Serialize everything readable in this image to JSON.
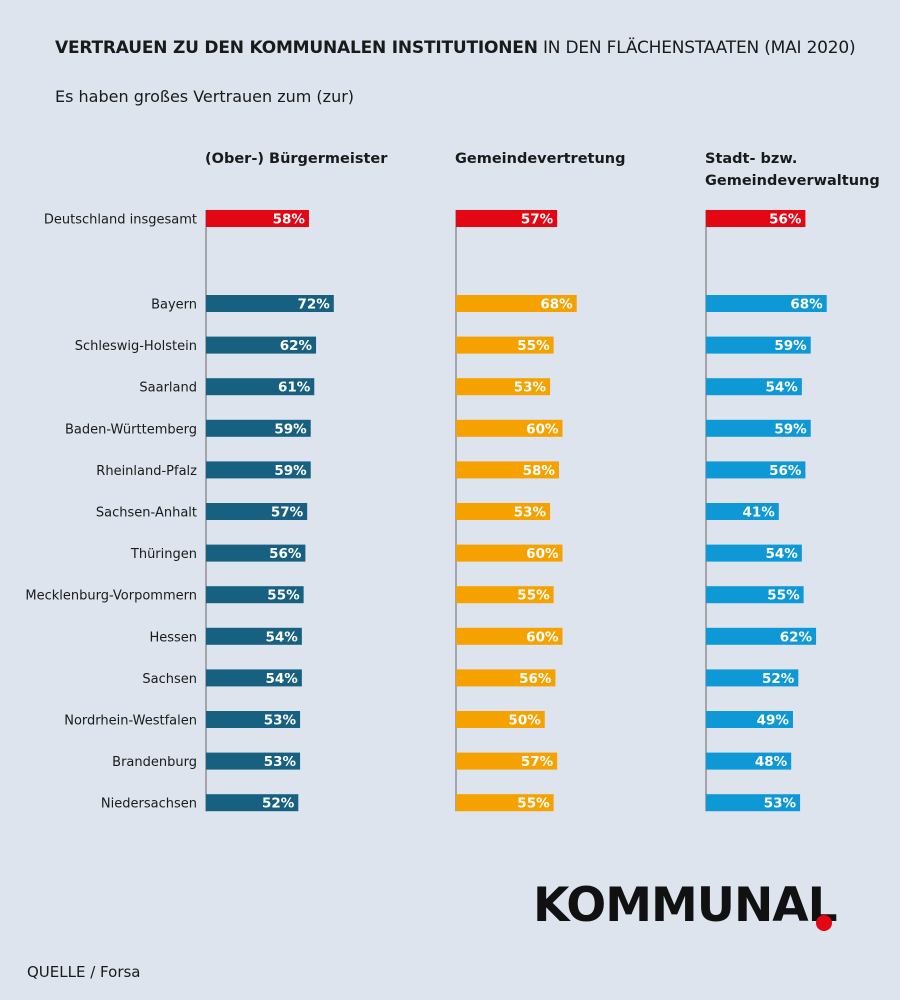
{
  "header": {
    "title_bold": "VERTRAUEN ZU DEN KOMMUNALEN INSTITUTIONEN",
    "title_rest": " IN DEN FLÄCHENSTAATEN (MAI 2020)",
    "subtitle": "Es haben großes Vertrauen zum (zur)"
  },
  "footer": {
    "source": "QUELLE / Forsa",
    "logo_text": "KOMMUNAL",
    "logo_dot_color": "#e30613"
  },
  "chart_data": {
    "type": "bar",
    "orientation": "horizontal",
    "unit": "%",
    "total": {
      "label": "Deutschland insgesamt",
      "values": [
        58,
        57,
        56
      ],
      "color": "#e30613"
    },
    "categories": [
      "Bayern",
      "Schleswig-Holstein",
      "Saarland",
      "Baden-Württemberg",
      "Rheinland-Pfalz",
      "Sachsen-Anhalt",
      "Thüringen",
      "Mecklenburg-Vorpommern",
      "Hessen",
      "Sachsen",
      "Nordrhein-Westfalen",
      "Brandenburg",
      "Niedersachsen"
    ],
    "series": [
      {
        "name": "(Ober-) Bürgermeister",
        "color": "#17607f",
        "values": [
          72,
          62,
          61,
          59,
          59,
          57,
          56,
          55,
          54,
          54,
          53,
          53,
          52
        ]
      },
      {
        "name": "Gemeindevertretung",
        "color": "#f5a100",
        "values": [
          68,
          55,
          53,
          60,
          58,
          53,
          60,
          55,
          60,
          56,
          50,
          57,
          55
        ]
      },
      {
        "name": "Stadt- bzw. Gemeindeverwaltung",
        "color": "#0f98d6",
        "values": [
          68,
          59,
          54,
          59,
          56,
          41,
          54,
          55,
          62,
          52,
          49,
          48,
          53
        ]
      }
    ]
  }
}
